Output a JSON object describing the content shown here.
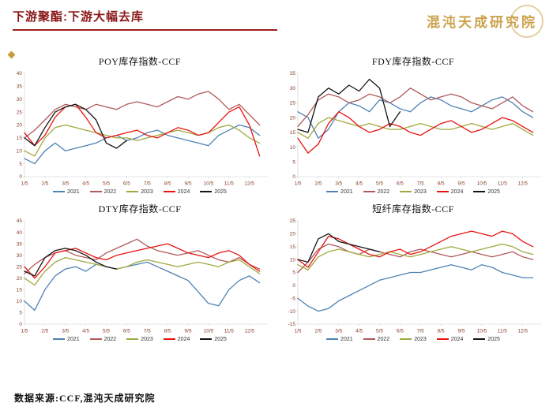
{
  "slide": {
    "title": "下游聚酯:下游大幅去库",
    "logo": "混沌天成研究院",
    "source": "数据来源:CCF,混沌天成研究院",
    "accent_color": "#8b1717",
    "logo_color": "#c79a3b"
  },
  "series_colors": {
    "2021": "#4f81b4",
    "2022": "#b05959",
    "2023": "#a0a83e",
    "2024": "#e8120f",
    "2025": "#141414"
  },
  "chart_data": [
    {
      "type": "line",
      "title": "POY库存指数-CCF",
      "ylim": [
        0,
        40
      ],
      "y_ticks": [
        0,
        5,
        10,
        15,
        20,
        25,
        30,
        35,
        40
      ],
      "x_ticks": [
        "1/5",
        "2/5",
        "3/5",
        "4/5",
        "5/5",
        "6/5",
        "7/5",
        "8/5",
        "9/5",
        "10/5",
        "11/5",
        "12/5"
      ],
      "x": [
        1,
        1.5,
        2,
        2.5,
        3,
        3.5,
        4,
        4.5,
        5,
        5.5,
        6,
        6.5,
        7,
        7.5,
        8,
        8.5,
        9,
        9.5,
        10,
        10.5,
        11,
        11.5,
        12,
        12.5
      ],
      "legend_position": "bottom",
      "grid": false,
      "series": [
        {
          "name": "2021",
          "color": "#4f81b4",
          "values": [
            7,
            5,
            10,
            13,
            10,
            11,
            12,
            13,
            15,
            16,
            14,
            15,
            17,
            18,
            16,
            15,
            14,
            13,
            12,
            16,
            18,
            20,
            19,
            16
          ]
        },
        {
          "name": "2022",
          "color": "#b05959",
          "values": [
            15,
            18,
            22,
            26,
            28,
            27,
            26,
            28,
            27,
            26,
            28,
            29,
            28,
            27,
            29,
            31,
            30,
            32,
            33,
            30,
            26,
            28,
            24,
            20
          ]
        },
        {
          "name": "2023",
          "color": "#a0a83e",
          "values": [
            10,
            8,
            15,
            19,
            20,
            19,
            18,
            17,
            16,
            15,
            15,
            14,
            15,
            16,
            17,
            18,
            17,
            16,
            17,
            19,
            20,
            18,
            15,
            13
          ]
        },
        {
          "name": "2024",
          "color": "#e8120f",
          "values": [
            17,
            12,
            16,
            23,
            27,
            28,
            23,
            17,
            15,
            16,
            17,
            18,
            16,
            15,
            17,
            19,
            18,
            16,
            17,
            21,
            25,
            27,
            20,
            8
          ]
        },
        {
          "name": "2025",
          "color": "#141414",
          "values": [
            15,
            12,
            19,
            25,
            27,
            28,
            26,
            22,
            13,
            11,
            14
          ]
        }
      ]
    },
    {
      "type": "line",
      "title": "FDY库存指数-CCF",
      "ylim": [
        0,
        35
      ],
      "y_ticks": [
        0,
        5,
        10,
        15,
        20,
        25,
        30,
        35
      ],
      "x_ticks": [
        "1/5",
        "2/5",
        "3/5",
        "4/5",
        "5/5",
        "6/5",
        "7/5",
        "8/5",
        "9/5",
        "10/5",
        "11/5",
        "12/5"
      ],
      "x": [
        1,
        1.5,
        2,
        2.5,
        3,
        3.5,
        4,
        4.5,
        5,
        5.5,
        6,
        6.5,
        7,
        7.5,
        8,
        8.5,
        9,
        9.5,
        10,
        10.5,
        11,
        11.5,
        12,
        12.5
      ],
      "legend_position": "bottom",
      "grid": false,
      "series": [
        {
          "name": "2021",
          "color": "#4f81b4",
          "values": [
            22,
            20,
            13,
            16,
            22,
            25,
            24,
            22,
            26,
            25,
            23,
            22,
            25,
            27,
            26,
            24,
            23,
            22,
            24,
            26,
            27,
            25,
            22,
            20
          ]
        },
        {
          "name": "2022",
          "color": "#b05959",
          "values": [
            17,
            21,
            26,
            28,
            27,
            25,
            26,
            28,
            27,
            25,
            27,
            30,
            28,
            26,
            27,
            28,
            27,
            25,
            24,
            23,
            25,
            27,
            24,
            22
          ]
        },
        {
          "name": "2023",
          "color": "#a0a83e",
          "values": [
            15,
            13,
            18,
            20,
            19,
            18,
            17,
            18,
            17,
            16,
            16,
            17,
            18,
            17,
            16,
            16,
            17,
            18,
            17,
            16,
            17,
            18,
            16,
            14
          ]
        },
        {
          "name": "2024",
          "color": "#e8120f",
          "values": [
            13,
            8,
            11,
            18,
            22,
            20,
            17,
            15,
            16,
            18,
            17,
            15,
            14,
            16,
            18,
            19,
            17,
            15,
            16,
            18,
            20,
            19,
            17,
            15
          ]
        },
        {
          "name": "2025",
          "color": "#141414",
          "values": [
            16,
            15,
            27,
            30,
            28,
            31,
            29,
            33,
            30,
            17,
            22
          ]
        }
      ]
    },
    {
      "type": "line",
      "title": "DTY库存指数-CCF",
      "ylim": [
        0,
        45
      ],
      "y_ticks": [
        0,
        5,
        10,
        15,
        20,
        25,
        30,
        35,
        40,
        45
      ],
      "x_ticks": [
        "1/5",
        "2/5",
        "3/5",
        "4/5",
        "5/5",
        "6/5",
        "7/5",
        "8/5",
        "9/5",
        "10/5",
        "11/5",
        "12/5"
      ],
      "x": [
        1,
        1.5,
        2,
        2.5,
        3,
        3.5,
        4,
        4.5,
        5,
        5.5,
        6,
        6.5,
        7,
        7.5,
        8,
        8.5,
        9,
        9.5,
        10,
        10.5,
        11,
        11.5,
        12,
        12.5
      ],
      "legend_position": "bottom",
      "grid": false,
      "series": [
        {
          "name": "2021",
          "color": "#4f81b4",
          "values": [
            10,
            6,
            15,
            21,
            24,
            25,
            23,
            26,
            25,
            24,
            25,
            26,
            27,
            25,
            23,
            21,
            19,
            14,
            9,
            8,
            15,
            19,
            21,
            18
          ]
        },
        {
          "name": "2022",
          "color": "#b05959",
          "values": [
            22,
            26,
            29,
            31,
            32,
            30,
            29,
            28,
            31,
            33,
            35,
            37,
            34,
            32,
            31,
            30,
            31,
            32,
            30,
            28,
            27,
            29,
            26,
            24
          ]
        },
        {
          "name": "2023",
          "color": "#a0a83e",
          "values": [
            20,
            17,
            23,
            27,
            29,
            28,
            27,
            26,
            25,
            24,
            25,
            27,
            28,
            27,
            26,
            25,
            26,
            27,
            26,
            25,
            27,
            28,
            25,
            22
          ]
        },
        {
          "name": "2024",
          "color": "#e8120f",
          "values": [
            25,
            20,
            25,
            31,
            32,
            33,
            31,
            29,
            28,
            30,
            31,
            32,
            33,
            34,
            35,
            33,
            31,
            30,
            29,
            31,
            32,
            30,
            26,
            23
          ]
        },
        {
          "name": "2025",
          "color": "#141414",
          "values": [
            23,
            21,
            29,
            32,
            33,
            32,
            30,
            27,
            25,
            24
          ]
        }
      ]
    },
    {
      "type": "line",
      "title": "短纤库存指数-CCF",
      "ylim": [
        -15,
        25
      ],
      "y_ticks": [
        -15,
        -10,
        -5,
        0,
        5,
        10,
        15,
        20,
        25
      ],
      "x_ticks": [
        "1/5",
        "2/5",
        "3/5",
        "4/5",
        "5/5",
        "6/5",
        "7/5",
        "8/5",
        "9/5",
        "10/5",
        "11/5",
        "12/5"
      ],
      "x": [
        1,
        1.5,
        2,
        2.5,
        3,
        3.5,
        4,
        4.5,
        5,
        5.5,
        6,
        6.5,
        7,
        7.5,
        8,
        8.5,
        9,
        9.5,
        10,
        10.5,
        11,
        11.5,
        12,
        12.5
      ],
      "legend_position": "bottom",
      "grid": false,
      "series": [
        {
          "name": "2021",
          "color": "#4f81b4",
          "values": [
            -5,
            -8,
            -10,
            -9,
            -6,
            -4,
            -2,
            0,
            2,
            3,
            4,
            5,
            5,
            6,
            7,
            8,
            7,
            6,
            8,
            7,
            5,
            4,
            3,
            3
          ]
        },
        {
          "name": "2022",
          "color": "#b05959",
          "values": [
            5,
            9,
            14,
            16,
            15,
            13,
            12,
            14,
            13,
            12,
            11,
            13,
            14,
            13,
            12,
            11,
            12,
            13,
            12,
            11,
            12,
            13,
            11,
            10
          ]
        },
        {
          "name": "2023",
          "color": "#a0a83e",
          "values": [
            8,
            6,
            11,
            13,
            14,
            13,
            12,
            11,
            12,
            13,
            12,
            11,
            12,
            13,
            14,
            15,
            14,
            13,
            14,
            15,
            16,
            15,
            13,
            12
          ]
        },
        {
          "name": "2024",
          "color": "#e8120f",
          "values": [
            10,
            7,
            13,
            19,
            18,
            16,
            14,
            12,
            11,
            13,
            14,
            12,
            13,
            15,
            17,
            19,
            20,
            21,
            20,
            19,
            21,
            20,
            17,
            15
          ]
        },
        {
          "name": "2025",
          "color": "#141414",
          "values": [
            10,
            9,
            18,
            20,
            17,
            16,
            15,
            14,
            13
          ]
        }
      ]
    }
  ]
}
